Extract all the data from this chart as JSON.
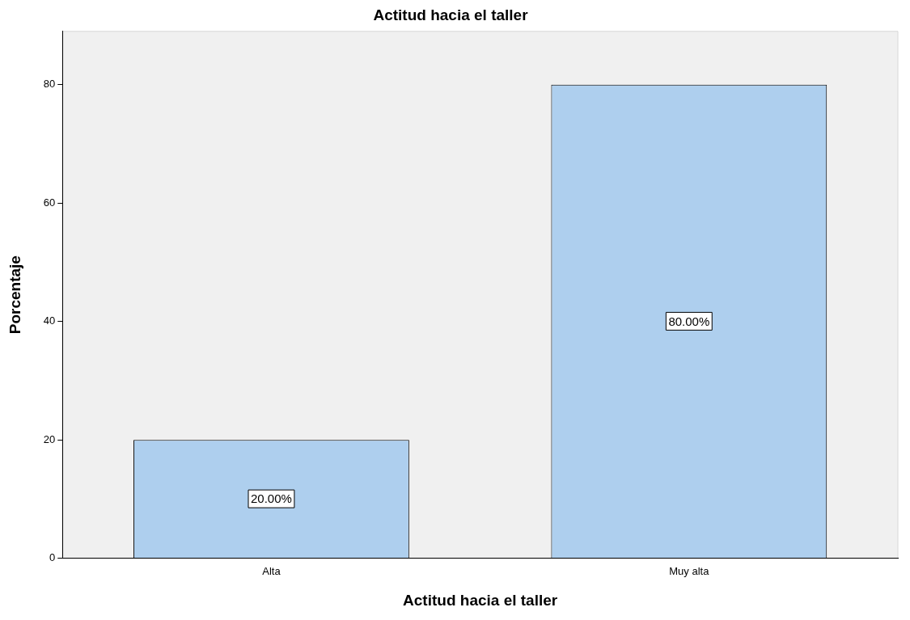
{
  "chart_data": {
    "type": "bar",
    "title": "Actitud hacia el taller",
    "xlabel": "Actitud hacia el taller",
    "ylabel": "Porcentaje",
    "categories": [
      "Alta",
      "Muy alta"
    ],
    "values": [
      20,
      80
    ],
    "value_labels": [
      "20.00%",
      "80.00%"
    ],
    "color": "#aecfee",
    "ylim": [
      0,
      89
    ],
    "yticks": [
      0,
      20,
      40,
      60,
      80
    ],
    "grid": false,
    "legend": false
  }
}
